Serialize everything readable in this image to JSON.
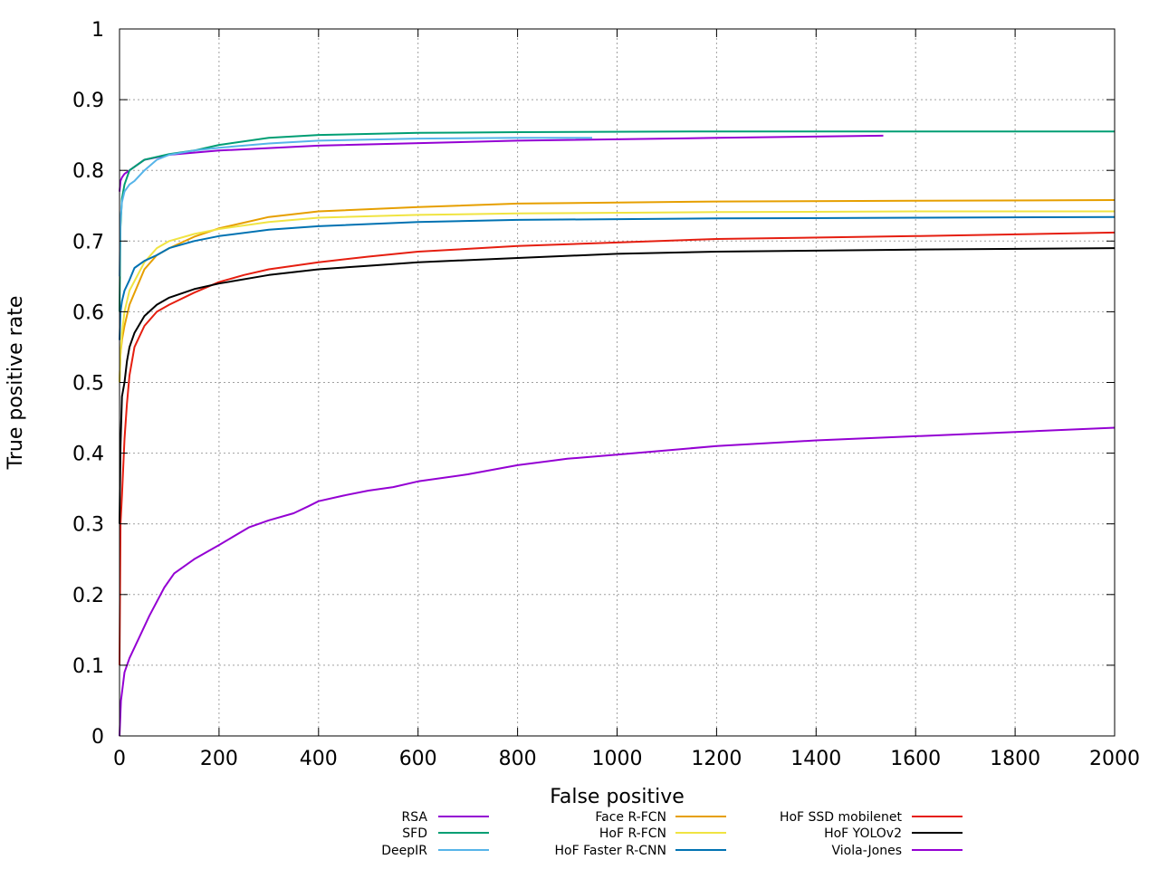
{
  "chart_data": {
    "type": "line",
    "title": "",
    "xlabel": "False positive",
    "ylabel": "True positive rate",
    "xlim": [
      0,
      2000
    ],
    "ylim": [
      0,
      1
    ],
    "xticks": [
      0,
      200,
      400,
      600,
      800,
      1000,
      1200,
      1400,
      1600,
      1800,
      2000
    ],
    "yticks": [
      0,
      0.1,
      0.2,
      0.3,
      0.4,
      0.5,
      0.6,
      0.7,
      0.8,
      0.9,
      1
    ],
    "ytick_labels": [
      "0",
      "0.1",
      "0.2",
      "0.3",
      "0.4",
      "0.5",
      "0.6",
      "0.7",
      "0.8",
      "0.9",
      "1"
    ],
    "grid": true,
    "legend_position": "bottom",
    "series": [
      {
        "name": "RSA",
        "color": "#9400d3",
        "x": [
          0,
          2,
          5,
          10,
          20,
          50,
          100,
          200,
          400,
          800,
          1200,
          1535
        ],
        "y": [
          0.77,
          0.785,
          0.79,
          0.795,
          0.8,
          0.815,
          0.822,
          0.828,
          0.835,
          0.842,
          0.846,
          0.849
        ]
      },
      {
        "name": "SFD",
        "color": "#009e73",
        "x": [
          0,
          2,
          5,
          10,
          20,
          50,
          100,
          150,
          200,
          300,
          400,
          600,
          800,
          1200,
          1600,
          2000
        ],
        "y": [
          0.6,
          0.72,
          0.76,
          0.78,
          0.8,
          0.815,
          0.823,
          0.828,
          0.836,
          0.846,
          0.85,
          0.853,
          0.854,
          0.855,
          0.855,
          0.855
        ]
      },
      {
        "name": "DeepIR",
        "color": "#56b4e9",
        "x": [
          0,
          2,
          5,
          10,
          20,
          30,
          50,
          75,
          100,
          150,
          200,
          300,
          400,
          600,
          800,
          950
        ],
        "y": [
          0.65,
          0.73,
          0.755,
          0.77,
          0.78,
          0.785,
          0.8,
          0.815,
          0.822,
          0.828,
          0.832,
          0.838,
          0.842,
          0.845,
          0.846,
          0.846
        ]
      },
      {
        "name": "Face R-FCN",
        "color": "#e69f00",
        "x": [
          0,
          2,
          5,
          10,
          20,
          50,
          75,
          100,
          150,
          200,
          250,
          300,
          400,
          600,
          800,
          1200,
          1600,
          2000
        ],
        "y": [
          0.5,
          0.54,
          0.56,
          0.58,
          0.61,
          0.66,
          0.68,
          0.69,
          0.706,
          0.718,
          0.726,
          0.734,
          0.742,
          0.748,
          0.753,
          0.756,
          0.757,
          0.758
        ]
      },
      {
        "name": "HoF R-FCN",
        "color": "#f0e442",
        "x": [
          0,
          2,
          5,
          10,
          20,
          50,
          75,
          100,
          150,
          200,
          300,
          400,
          600,
          800,
          1200,
          1600,
          2000
        ],
        "y": [
          0.5,
          0.54,
          0.57,
          0.6,
          0.63,
          0.67,
          0.69,
          0.7,
          0.71,
          0.717,
          0.727,
          0.733,
          0.737,
          0.739,
          0.741,
          0.742,
          0.742
        ]
      },
      {
        "name": "HoF Faster R-CNN",
        "color": "#0072b2",
        "x": [
          0,
          2,
          5,
          10,
          20,
          30,
          50,
          75,
          100,
          150,
          200,
          300,
          400,
          600,
          800,
          1200,
          1600,
          2000
        ],
        "y": [
          0.56,
          0.6,
          0.615,
          0.63,
          0.645,
          0.662,
          0.672,
          0.68,
          0.69,
          0.7,
          0.707,
          0.716,
          0.721,
          0.727,
          0.73,
          0.732,
          0.733,
          0.734
        ]
      },
      {
        "name": "HoF SSD mobilenet",
        "color": "#e51e10",
        "x": [
          0,
          2,
          5,
          10,
          15,
          20,
          30,
          50,
          75,
          100,
          150,
          200,
          250,
          300,
          400,
          500,
          600,
          800,
          1000,
          1200,
          1600,
          2000
        ],
        "y": [
          0.1,
          0.3,
          0.34,
          0.42,
          0.47,
          0.51,
          0.55,
          0.58,
          0.6,
          0.61,
          0.627,
          0.642,
          0.652,
          0.66,
          0.67,
          0.678,
          0.685,
          0.693,
          0.698,
          0.703,
          0.707,
          0.712
        ]
      },
      {
        "name": "HoF YOLOv2",
        "color": "#000000",
        "x": [
          0,
          2,
          5,
          10,
          15,
          20,
          30,
          50,
          75,
          100,
          150,
          200,
          300,
          400,
          500,
          600,
          800,
          1000,
          1200,
          1600,
          2000
        ],
        "y": [
          0.3,
          0.41,
          0.48,
          0.5,
          0.53,
          0.55,
          0.57,
          0.594,
          0.61,
          0.62,
          0.632,
          0.64,
          0.652,
          0.66,
          0.665,
          0.67,
          0.676,
          0.682,
          0.685,
          0.688,
          0.69
        ]
      },
      {
        "name": "Viola-Jones",
        "color": "#9400d3",
        "x": [
          0,
          3,
          10,
          20,
          40,
          60,
          90,
          110,
          150,
          200,
          260,
          300,
          350,
          380,
          400,
          450,
          500,
          550,
          600,
          700,
          800,
          900,
          1000,
          1200,
          1400,
          1600,
          1800,
          2000
        ],
        "y": [
          0.0,
          0.05,
          0.09,
          0.11,
          0.14,
          0.17,
          0.21,
          0.23,
          0.25,
          0.27,
          0.295,
          0.305,
          0.315,
          0.325,
          0.332,
          0.34,
          0.347,
          0.352,
          0.36,
          0.37,
          0.383,
          0.392,
          0.398,
          0.41,
          0.418,
          0.424,
          0.43,
          0.436
        ]
      }
    ]
  }
}
